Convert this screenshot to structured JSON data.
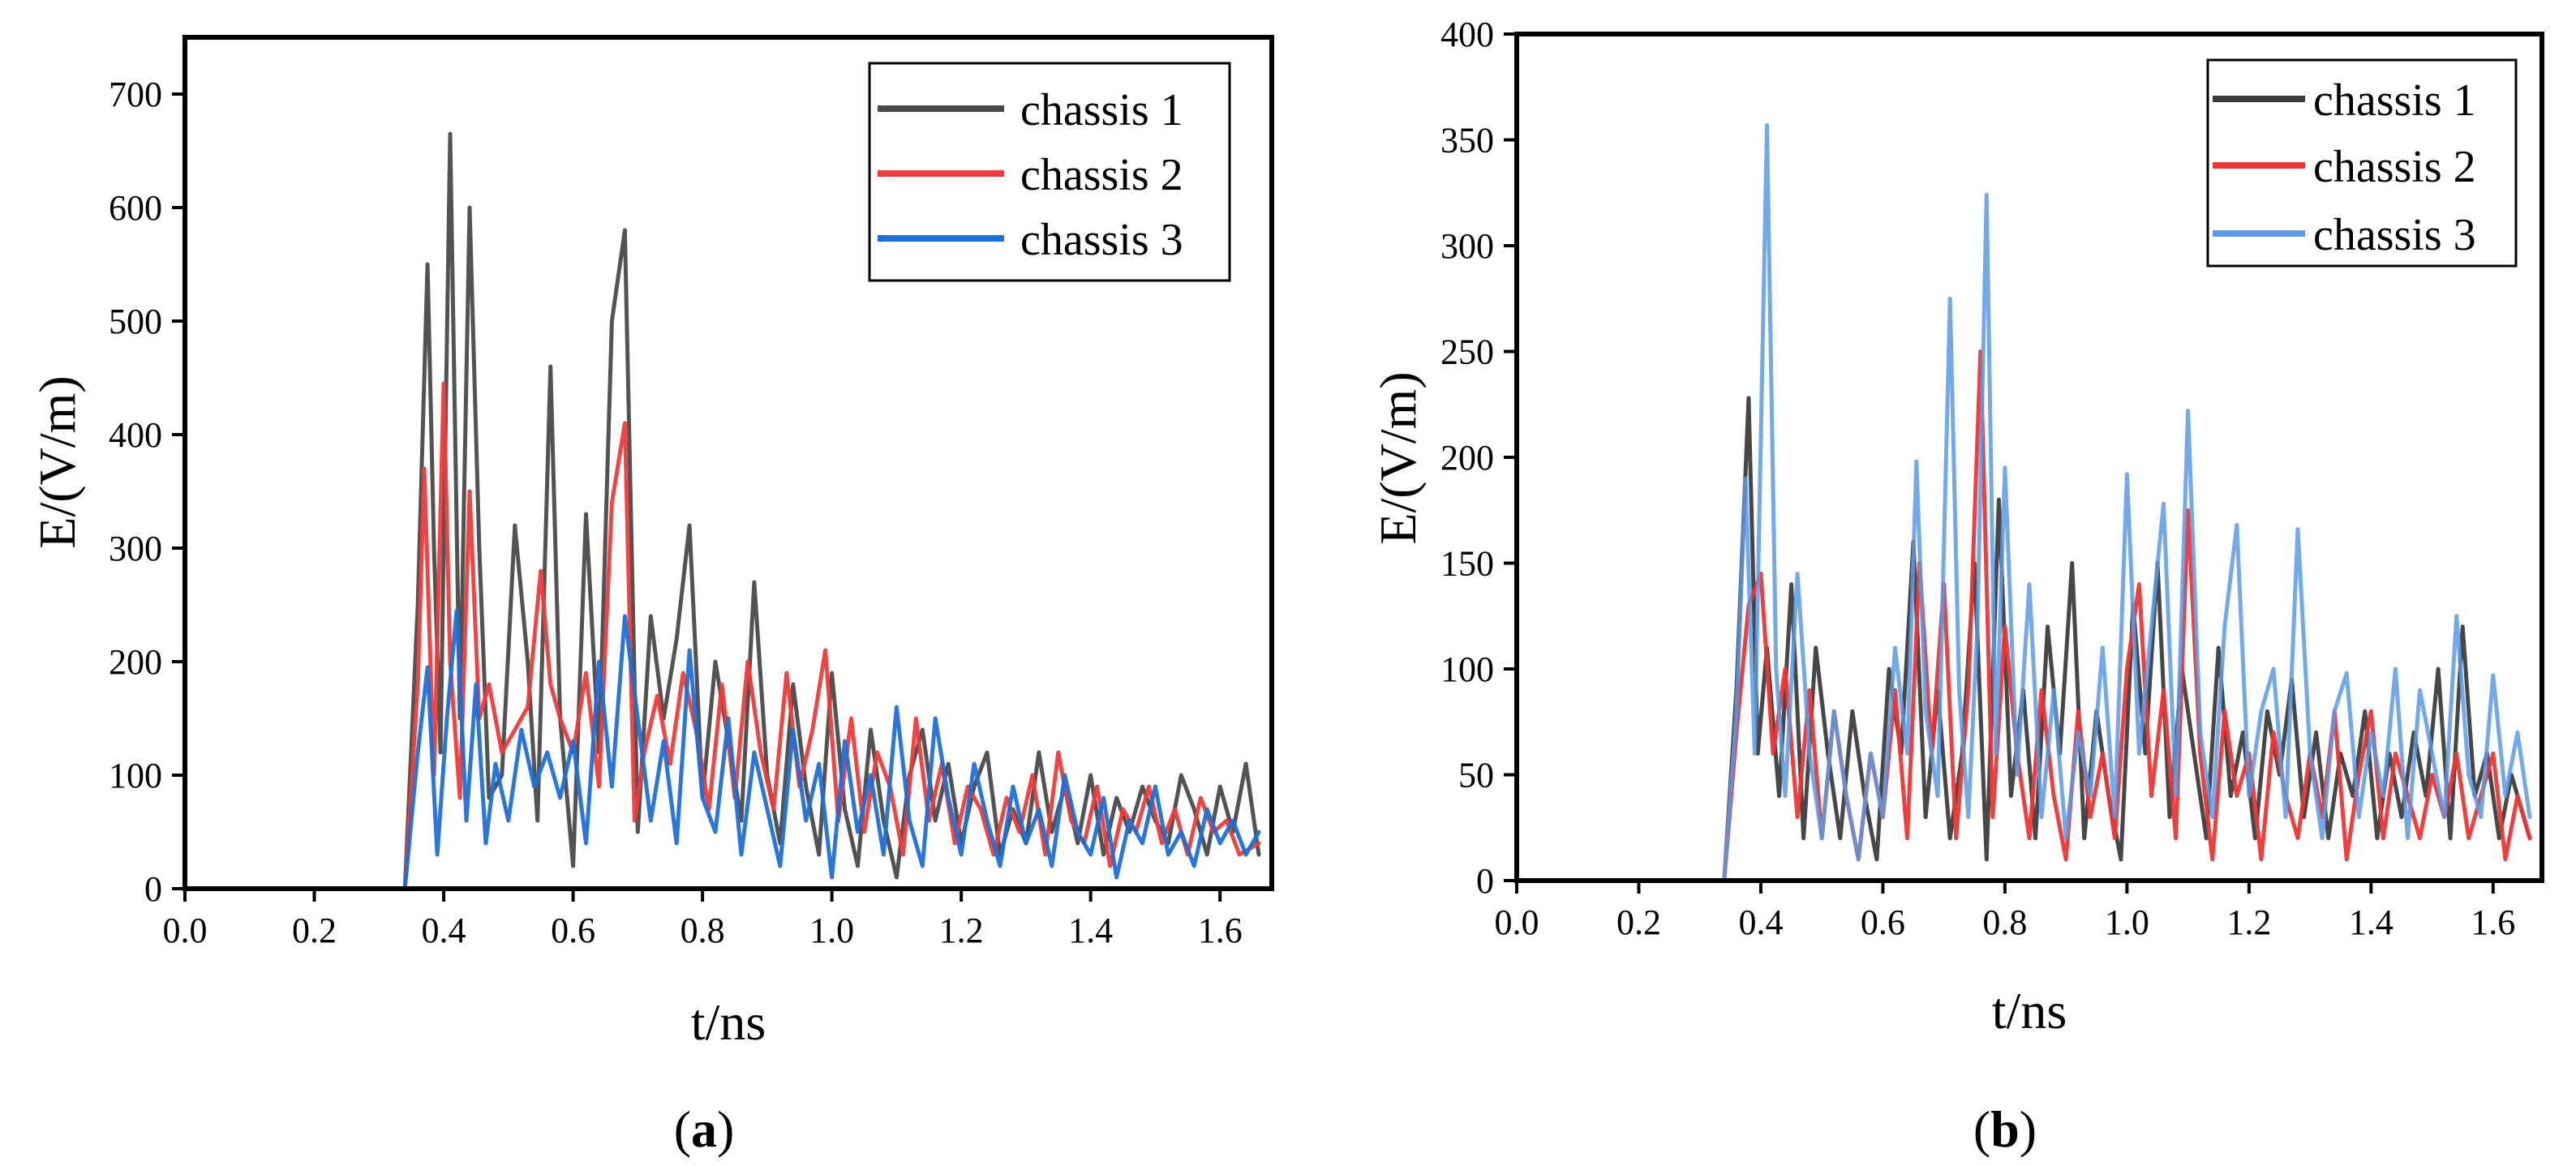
{
  "figure": {
    "panels": [
      {
        "open": "(",
        "letter": "a",
        "close": ")"
      },
      {
        "open": "(",
        "letter": "b",
        "close": ")"
      }
    ]
  },
  "chart_data": [
    {
      "type": "line",
      "panel_label": "(a)",
      "title": "",
      "xlabel": "t/ns",
      "ylabel": "E/(V/m)",
      "xlim": [
        0.0,
        1.68
      ],
      "ylim": [
        0,
        750
      ],
      "xticks": [
        0.0,
        0.2,
        0.4,
        0.6,
        0.8,
        1.0,
        1.2,
        1.4,
        1.6
      ],
      "xtick_labels": [
        "0.0",
        "0.2",
        "0.4",
        "0.6",
        "0.8",
        "1.0",
        "1.2",
        "1.4",
        "1.6"
      ],
      "yticks": [
        0,
        100,
        200,
        300,
        400,
        500,
        600,
        700
      ],
      "ytick_labels": [
        "0",
        "100",
        "200",
        "300",
        "400",
        "500",
        "600",
        "700"
      ],
      "grid": false,
      "legend_position": "top-right",
      "series": [
        {
          "name": "chassis 1",
          "color": "#4a4a4a",
          "x": [
            0.0,
            0.34,
            0.36,
            0.375,
            0.385,
            0.395,
            0.41,
            0.425,
            0.44,
            0.455,
            0.47,
            0.49,
            0.51,
            0.53,
            0.545,
            0.565,
            0.58,
            0.6,
            0.62,
            0.64,
            0.66,
            0.68,
            0.7,
            0.72,
            0.74,
            0.76,
            0.78,
            0.8,
            0.82,
            0.84,
            0.86,
            0.88,
            0.9,
            0.92,
            0.94,
            0.96,
            0.98,
            1.0,
            1.02,
            1.04,
            1.06,
            1.08,
            1.1,
            1.12,
            1.14,
            1.16,
            1.18,
            1.2,
            1.22,
            1.24,
            1.26,
            1.28,
            1.3,
            1.32,
            1.34,
            1.36,
            1.38,
            1.4,
            1.42,
            1.44,
            1.46,
            1.48,
            1.5,
            1.52,
            1.54,
            1.56,
            1.58,
            1.6,
            1.62,
            1.64,
            1.66
          ],
          "y": [
            0,
            0,
            250,
            550,
            300,
            120,
            665,
            150,
            600,
            300,
            80,
            100,
            320,
            200,
            60,
            460,
            150,
            20,
            330,
            120,
            500,
            580,
            50,
            240,
            150,
            220,
            320,
            80,
            200,
            130,
            60,
            270,
            100,
            40,
            180,
            90,
            30,
            190,
            70,
            20,
            140,
            60,
            10,
            100,
            140,
            60,
            110,
            40,
            90,
            120,
            30,
            70,
            40,
            120,
            50,
            90,
            40,
            100,
            30,
            80,
            50,
            90,
            60,
            40,
            100,
            70,
            30,
            90,
            50,
            110,
            30
          ]
        },
        {
          "name": "chassis 2",
          "color": "#ef3b3b",
          "x": [
            0.0,
            0.34,
            0.36,
            0.37,
            0.385,
            0.4,
            0.41,
            0.425,
            0.44,
            0.455,
            0.47,
            0.49,
            0.51,
            0.53,
            0.55,
            0.565,
            0.58,
            0.6,
            0.62,
            0.64,
            0.66,
            0.68,
            0.695,
            0.71,
            0.73,
            0.75,
            0.77,
            0.79,
            0.81,
            0.83,
            0.85,
            0.87,
            0.89,
            0.91,
            0.93,
            0.95,
            0.97,
            0.99,
            1.01,
            1.03,
            1.05,
            1.07,
            1.09,
            1.11,
            1.13,
            1.15,
            1.17,
            1.19,
            1.21,
            1.23,
            1.25,
            1.27,
            1.29,
            1.31,
            1.33,
            1.35,
            1.37,
            1.39,
            1.41,
            1.43,
            1.45,
            1.47,
            1.49,
            1.51,
            1.53,
            1.55,
            1.57,
            1.59,
            1.61,
            1.63,
            1.66
          ],
          "y": [
            0,
            0,
            180,
            370,
            100,
            445,
            200,
            80,
            350,
            150,
            180,
            120,
            140,
            160,
            280,
            180,
            150,
            120,
            190,
            90,
            340,
            410,
            60,
            120,
            170,
            110,
            190,
            140,
            70,
            180,
            80,
            200,
            120,
            70,
            190,
            90,
            140,
            210,
            60,
            150,
            50,
            120,
            90,
            30,
            150,
            60,
            110,
            40,
            90,
            70,
            30,
            80,
            50,
            100,
            30,
            120,
            60,
            40,
            90,
            20,
            70,
            50,
            90,
            40,
            70,
            30,
            80,
            50,
            60,
            30,
            40
          ]
        },
        {
          "name": "chassis 3",
          "color": "#1f6fd8",
          "x": [
            0.0,
            0.34,
            0.36,
            0.375,
            0.39,
            0.405,
            0.42,
            0.435,
            0.45,
            0.465,
            0.48,
            0.5,
            0.52,
            0.54,
            0.56,
            0.58,
            0.6,
            0.62,
            0.64,
            0.66,
            0.68,
            0.7,
            0.72,
            0.74,
            0.76,
            0.78,
            0.8,
            0.82,
            0.84,
            0.86,
            0.88,
            0.9,
            0.92,
            0.94,
            0.96,
            0.98,
            1.0,
            1.02,
            1.04,
            1.06,
            1.08,
            1.1,
            1.12,
            1.14,
            1.16,
            1.18,
            1.2,
            1.22,
            1.24,
            1.26,
            1.28,
            1.3,
            1.32,
            1.34,
            1.36,
            1.38,
            1.4,
            1.42,
            1.44,
            1.46,
            1.48,
            1.5,
            1.52,
            1.54,
            1.56,
            1.58,
            1.6,
            1.62,
            1.64,
            1.66
          ],
          "y": [
            0,
            0,
            120,
            195,
            30,
            150,
            245,
            60,
            180,
            40,
            110,
            60,
            140,
            90,
            120,
            80,
            130,
            40,
            200,
            90,
            240,
            150,
            60,
            130,
            40,
            210,
            80,
            50,
            150,
            30,
            120,
            70,
            20,
            140,
            60,
            110,
            10,
            130,
            50,
            100,
            30,
            160,
            60,
            20,
            150,
            80,
            30,
            110,
            60,
            20,
            90,
            40,
            70,
            20,
            100,
            50,
            30,
            80,
            10,
            60,
            40,
            90,
            30,
            50,
            20,
            70,
            40,
            60,
            30,
            50
          ]
        }
      ]
    },
    {
      "type": "line",
      "panel_label": "(b)",
      "title": "",
      "xlabel": "t/ns",
      "ylabel": "E/(V/m)",
      "xlim": [
        0.0,
        1.68
      ],
      "ylim": [
        0,
        400
      ],
      "xticks": [
        0.0,
        0.2,
        0.4,
        0.6,
        0.8,
        1.0,
        1.2,
        1.4,
        1.6
      ],
      "xtick_labels": [
        "0.0",
        "0.2",
        "0.4",
        "0.6",
        "0.8",
        "1.0",
        "1.2",
        "1.4",
        "1.6"
      ],
      "yticks": [
        0,
        50,
        100,
        150,
        200,
        250,
        300,
        350,
        400
      ],
      "ytick_labels": [
        "0",
        "50",
        "100",
        "150",
        "200",
        "250",
        "300",
        "350",
        "400"
      ],
      "grid": false,
      "legend_position": "top-right",
      "series": [
        {
          "name": "chassis 1",
          "color": "#3d3d3d",
          "x": [
            0.0,
            0.34,
            0.36,
            0.38,
            0.395,
            0.41,
            0.43,
            0.45,
            0.47,
            0.49,
            0.51,
            0.53,
            0.55,
            0.57,
            0.59,
            0.61,
            0.63,
            0.65,
            0.67,
            0.69,
            0.71,
            0.73,
            0.75,
            0.77,
            0.79,
            0.81,
            0.83,
            0.85,
            0.87,
            0.89,
            0.91,
            0.93,
            0.95,
            0.97,
            0.99,
            1.01,
            1.03,
            1.05,
            1.07,
            1.09,
            1.11,
            1.13,
            1.15,
            1.17,
            1.19,
            1.21,
            1.23,
            1.25,
            1.27,
            1.29,
            1.31,
            1.33,
            1.35,
            1.37,
            1.39,
            1.41,
            1.43,
            1.45,
            1.47,
            1.49,
            1.51,
            1.53,
            1.55,
            1.57,
            1.59,
            1.61,
            1.63,
            1.66
          ],
          "y": [
            0,
            0,
            90,
            228,
            60,
            110,
            40,
            140,
            20,
            110,
            60,
            20,
            80,
            40,
            10,
            100,
            60,
            160,
            30,
            90,
            20,
            60,
            150,
            10,
            180,
            40,
            90,
            20,
            120,
            60,
            150,
            20,
            80,
            40,
            10,
            130,
            60,
            150,
            30,
            100,
            60,
            20,
            110,
            40,
            70,
            20,
            80,
            50,
            95,
            30,
            70,
            20,
            60,
            40,
            80,
            20,
            60,
            30,
            70,
            40,
            100,
            20,
            120,
            40,
            60,
            20,
            50,
            20
          ]
        },
        {
          "name": "chassis 2",
          "color": "#ee3535",
          "x": [
            0.0,
            0.34,
            0.36,
            0.38,
            0.4,
            0.42,
            0.44,
            0.46,
            0.48,
            0.5,
            0.52,
            0.54,
            0.56,
            0.58,
            0.6,
            0.62,
            0.64,
            0.66,
            0.68,
            0.7,
            0.72,
            0.74,
            0.76,
            0.78,
            0.8,
            0.82,
            0.84,
            0.86,
            0.88,
            0.9,
            0.92,
            0.94,
            0.96,
            0.98,
            1.0,
            1.02,
            1.04,
            1.06,
            1.08,
            1.1,
            1.12,
            1.14,
            1.16,
            1.18,
            1.2,
            1.22,
            1.24,
            1.26,
            1.28,
            1.3,
            1.32,
            1.34,
            1.36,
            1.38,
            1.4,
            1.42,
            1.44,
            1.46,
            1.48,
            1.5,
            1.52,
            1.54,
            1.56,
            1.58,
            1.6,
            1.62,
            1.64,
            1.66
          ],
          "y": [
            0,
            0,
            70,
            130,
            145,
            60,
            100,
            30,
            90,
            20,
            80,
            40,
            10,
            60,
            30,
            90,
            20,
            150,
            60,
            140,
            20,
            90,
            250,
            30,
            120,
            60,
            20,
            90,
            40,
            10,
            80,
            30,
            60,
            20,
            100,
            140,
            40,
            90,
            20,
            175,
            60,
            10,
            80,
            40,
            60,
            10,
            70,
            40,
            20,
            60,
            30,
            80,
            10,
            50,
            80,
            20,
            60,
            40,
            20,
            50,
            30,
            60,
            20,
            40,
            60,
            10,
            40,
            20
          ]
        },
        {
          "name": "chassis 3",
          "color": "#5b9ae6",
          "x": [
            0.0,
            0.34,
            0.36,
            0.375,
            0.39,
            0.41,
            0.425,
            0.44,
            0.46,
            0.48,
            0.5,
            0.52,
            0.54,
            0.56,
            0.58,
            0.6,
            0.62,
            0.64,
            0.655,
            0.67,
            0.69,
            0.71,
            0.725,
            0.74,
            0.755,
            0.77,
            0.785,
            0.8,
            0.82,
            0.84,
            0.86,
            0.88,
            0.9,
            0.92,
            0.94,
            0.96,
            0.98,
            1.0,
            1.02,
            1.04,
            1.06,
            1.08,
            1.1,
            1.12,
            1.14,
            1.16,
            1.18,
            1.2,
            1.22,
            1.24,
            1.26,
            1.28,
            1.3,
            1.32,
            1.34,
            1.36,
            1.38,
            1.4,
            1.42,
            1.44,
            1.46,
            1.48,
            1.5,
            1.52,
            1.54,
            1.56,
            1.58,
            1.6,
            1.62,
            1.64,
            1.66
          ],
          "y": [
            0,
            0,
            80,
            190,
            60,
            357,
            100,
            40,
            145,
            60,
            20,
            80,
            40,
            10,
            60,
            30,
            110,
            60,
            198,
            80,
            40,
            275,
            90,
            30,
            120,
            324,
            60,
            195,
            50,
            140,
            30,
            90,
            20,
            70,
            40,
            110,
            30,
            192,
            60,
            120,
            178,
            40,
            222,
            70,
            30,
            120,
            168,
            40,
            80,
            100,
            30,
            166,
            60,
            20,
            80,
            98,
            30,
            70,
            40,
            100,
            20,
            90,
            60,
            30,
            125,
            50,
            30,
            97,
            40,
            70,
            30
          ]
        }
      ]
    }
  ]
}
